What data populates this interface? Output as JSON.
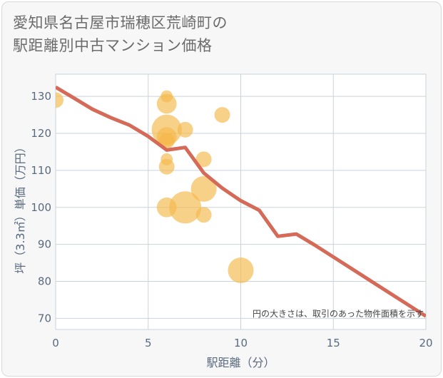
{
  "title_lines": [
    "愛知県名古屋市瑞穂区荒崎町の",
    "駅距離別中古マンション価格"
  ],
  "colors": {
    "line": "#d46a57",
    "bubble": "#f5b94a",
    "grid": "#c9d3de",
    "axis_text": "#5a6a7e",
    "plot_bg": "#ffffff"
  },
  "chart_data": {
    "type": "scatter",
    "title": "愛知県名古屋市瑞穂区荒崎町の駅距離別中古マンション価格",
    "xlabel": "駅距離（分）",
    "ylabel": "坪（3.3㎡）単価（万円）",
    "xlim": [
      0,
      20
    ],
    "ylim": [
      67,
      136
    ],
    "xticks": [
      0,
      5,
      10,
      15,
      20
    ],
    "yticks": [
      70,
      80,
      90,
      100,
      110,
      120,
      130
    ],
    "grid": true,
    "note": "円の大きさは、取引のあった物件面積を示す",
    "bubbles": [
      {
        "x": 0,
        "y": 129,
        "size": 1
      },
      {
        "x": 6,
        "y": 130,
        "size": 0.4
      },
      {
        "x": 6,
        "y": 128,
        "size": 2
      },
      {
        "x": 6,
        "y": 121,
        "size": 6
      },
      {
        "x": 6,
        "y": 119,
        "size": 2
      },
      {
        "x": 6,
        "y": 118,
        "size": 1
      },
      {
        "x": 6,
        "y": 113,
        "size": 0.4
      },
      {
        "x": 6,
        "y": 111,
        "size": 1
      },
      {
        "x": 6,
        "y": 100,
        "size": 2
      },
      {
        "x": 7,
        "y": 121,
        "size": 1
      },
      {
        "x": 7,
        "y": 100,
        "size": 7
      },
      {
        "x": 8,
        "y": 113,
        "size": 1
      },
      {
        "x": 8,
        "y": 105,
        "size": 4
      },
      {
        "x": 8,
        "y": 98,
        "size": 1
      },
      {
        "x": 9,
        "y": 125,
        "size": 1
      },
      {
        "x": 10,
        "y": 83,
        "size": 4
      }
    ],
    "trend": {
      "x": [
        0,
        1,
        2,
        3,
        4,
        5,
        6,
        7,
        8,
        9,
        10,
        11,
        12,
        13,
        14,
        15,
        16,
        17,
        18,
        19,
        20
      ],
      "y": [
        132.5,
        129.5,
        126.5,
        124.2,
        122.2,
        119.2,
        115.5,
        116.2,
        109.3,
        105.2,
        101.8,
        99.2,
        92.2,
        92.8,
        89.8,
        86.6,
        83.4,
        80.2,
        77.0,
        73.8,
        70.6
      ]
    }
  }
}
